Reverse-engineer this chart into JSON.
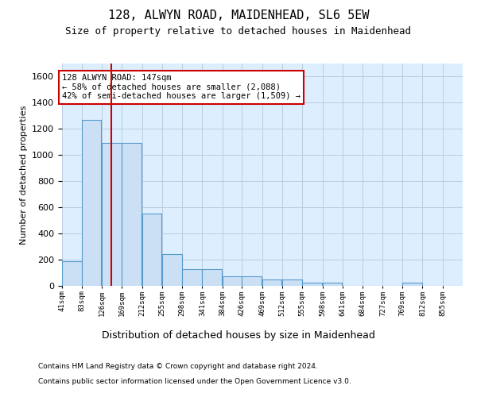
{
  "title1": "128, ALWYN ROAD, MAIDENHEAD, SL6 5EW",
  "title2": "Size of property relative to detached houses in Maidenhead",
  "xlabel": "Distribution of detached houses by size in Maidenhead",
  "ylabel": "Number of detached properties",
  "annotation_title": "128 ALWYN ROAD: 147sqm",
  "annotation_line1": "← 58% of detached houses are smaller (2,088)",
  "annotation_line2": "42% of semi-detached houses are larger (1,509) →",
  "property_size_sqm": 147,
  "bin_edges": [
    41,
    83,
    126,
    169,
    212,
    255,
    298,
    341,
    384,
    426,
    469,
    512,
    555,
    598,
    641,
    684,
    727,
    769,
    812,
    855,
    898
  ],
  "bar_heights": [
    190,
    1270,
    1090,
    1090,
    550,
    240,
    130,
    130,
    75,
    75,
    50,
    50,
    25,
    25,
    0,
    0,
    0,
    25,
    0,
    0
  ],
  "bar_color": "#cce0f5",
  "bar_edge_color": "#5599cc",
  "vline_color": "#cc0000",
  "vline_x": 147,
  "annotation_box_color": "#cc0000",
  "ylim": [
    0,
    1700
  ],
  "yticks": [
    0,
    200,
    400,
    600,
    800,
    1000,
    1200,
    1400,
    1600
  ],
  "grid_color": "#bbccdd",
  "bg_color": "#ddeeff",
  "footer1": "Contains HM Land Registry data © Crown copyright and database right 2024.",
  "footer2": "Contains public sector information licensed under the Open Government Licence v3.0."
}
